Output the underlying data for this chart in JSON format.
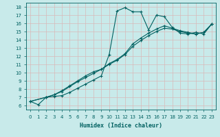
{
  "xlabel": "Humidex (Indice chaleur)",
  "bg_color": "#c8eaea",
  "grid_color": "#b0d8d8",
  "line_color": "#006060",
  "xlim": [
    -0.5,
    23.5
  ],
  "ylim": [
    5.5,
    18.5
  ],
  "xticks": [
    0,
    1,
    2,
    3,
    4,
    5,
    6,
    7,
    8,
    9,
    10,
    11,
    12,
    13,
    14,
    15,
    16,
    17,
    18,
    19,
    20,
    21,
    22,
    23
  ],
  "yticks": [
    6,
    7,
    8,
    9,
    10,
    11,
    12,
    13,
    14,
    15,
    16,
    17,
    18
  ],
  "line1_x": [
    0,
    1,
    2,
    3,
    4,
    5,
    6,
    7,
    8,
    9,
    10,
    11,
    12,
    13,
    14,
    15,
    16,
    17,
    18,
    19,
    20,
    21,
    22,
    23
  ],
  "line1_y": [
    6.5,
    6.1,
    7.0,
    7.1,
    7.2,
    7.6,
    8.1,
    8.6,
    9.1,
    9.6,
    12.2,
    17.5,
    17.9,
    17.4,
    17.4,
    15.2,
    17.0,
    16.8,
    15.5,
    14.8,
    14.7,
    14.9,
    14.7,
    15.9
  ],
  "line2_x": [
    0,
    2,
    3,
    4,
    5,
    6,
    7,
    8,
    9,
    10,
    11,
    12,
    13,
    14,
    15,
    16,
    17,
    18,
    19,
    20,
    21,
    22,
    23
  ],
  "line2_y": [
    6.5,
    7.0,
    7.3,
    7.7,
    8.3,
    8.9,
    9.4,
    9.9,
    10.4,
    11.0,
    11.5,
    12.2,
    13.2,
    13.9,
    14.5,
    15.0,
    15.4,
    15.3,
    15.0,
    14.8,
    14.7,
    14.9,
    15.9
  ],
  "line3_x": [
    0,
    2,
    3,
    4,
    5,
    6,
    7,
    8,
    9,
    10,
    11,
    12,
    13,
    14,
    15,
    16,
    17,
    18,
    19,
    20,
    21,
    22,
    23
  ],
  "line3_y": [
    6.5,
    7.0,
    7.3,
    7.8,
    8.4,
    9.0,
    9.6,
    10.1,
    10.4,
    11.1,
    11.6,
    12.3,
    13.5,
    14.2,
    14.8,
    15.3,
    15.7,
    15.4,
    15.1,
    14.9,
    14.7,
    14.9,
    15.9
  ]
}
